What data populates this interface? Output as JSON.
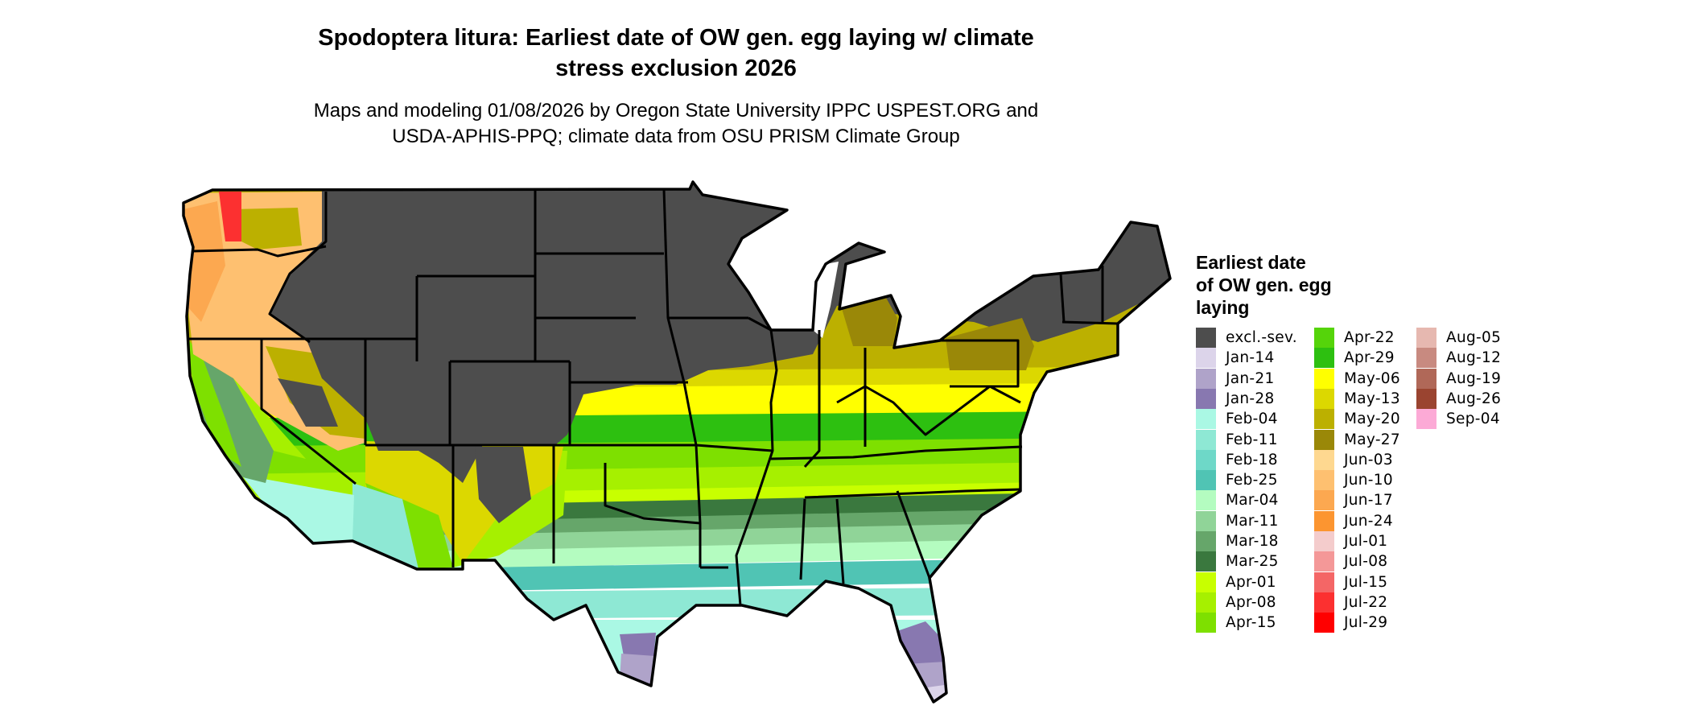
{
  "title": "Spodoptera litura: Earliest date of OW gen. egg laying w/ climate stress exclusion 2026",
  "title_lines": [
    "Spodoptera litura: Earliest date of OW gen. egg laying w/ climate",
    "stress exclusion 2026"
  ],
  "subtitle_lines": [
    "Maps and modeling 01/08/2026 by Oregon State University IPPC USPEST.ORG and",
    "USDA-APHIS-PPQ; climate data from OSU PRISM Climate Group"
  ],
  "map": {
    "region": "Conterminous United States",
    "state_borders": true
  },
  "legend": {
    "title_lines": [
      "Earliest date",
      "of OW gen. egg",
      "laying"
    ],
    "items": [
      {
        "label": "excl.-sev.",
        "color": "#4d4d4d"
      },
      {
        "label": "Jan-14",
        "color": "#dcd4ea"
      },
      {
        "label": "Jan-21",
        "color": "#afa3c9"
      },
      {
        "label": "Jan-28",
        "color": "#8878b0"
      },
      {
        "label": "Feb-04",
        "color": "#aaf8e4"
      },
      {
        "label": "Feb-11",
        "color": "#8ee8d4"
      },
      {
        "label": "Feb-18",
        "color": "#6ed8c8"
      },
      {
        "label": "Feb-25",
        "color": "#50c4b4"
      },
      {
        "label": "Mar-04",
        "color": "#b4fcc0"
      },
      {
        "label": "Mar-11",
        "color": "#90d498"
      },
      {
        "label": "Mar-18",
        "color": "#66a66a"
      },
      {
        "label": "Mar-25",
        "color": "#3a783e"
      },
      {
        "label": "Apr-01",
        "color": "#c8ff00"
      },
      {
        "label": "Apr-08",
        "color": "#a6f000"
      },
      {
        "label": "Apr-15",
        "color": "#7ee000"
      },
      {
        "label": "Apr-22",
        "color": "#55d40a"
      },
      {
        "label": "Apr-29",
        "color": "#2dc010"
      },
      {
        "label": "May-06",
        "color": "#ffff00"
      },
      {
        "label": "May-13",
        "color": "#dcd800"
      },
      {
        "label": "May-20",
        "color": "#bcb000"
      },
      {
        "label": "May-27",
        "color": "#9a8808"
      },
      {
        "label": "Jun-03",
        "color": "#fed890"
      },
      {
        "label": "Jun-10",
        "color": "#fec070"
      },
      {
        "label": "Jun-17",
        "color": "#fca850"
      },
      {
        "label": "Jun-24",
        "color": "#fc9530"
      },
      {
        "label": "Jul-01",
        "color": "#f4cccc"
      },
      {
        "label": "Jul-08",
        "color": "#f49898"
      },
      {
        "label": "Jul-15",
        "color": "#f46666"
      },
      {
        "label": "Jul-22",
        "color": "#fc3030"
      },
      {
        "label": "Jul-29",
        "color": "#ff0000"
      },
      {
        "label": "Aug-05",
        "color": "#e6b8b0"
      },
      {
        "label": "Aug-12",
        "color": "#c88a80"
      },
      {
        "label": "Aug-19",
        "color": "#b06858"
      },
      {
        "label": "Aug-26",
        "color": "#9a4430"
      },
      {
        "label": "Sep-04",
        "color": "#fcaad6"
      }
    ]
  }
}
